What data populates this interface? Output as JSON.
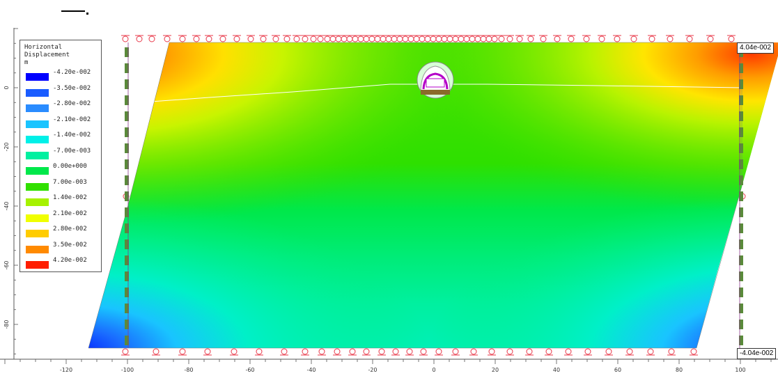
{
  "legend": {
    "title_line1": "Horizontal",
    "title_line2": "Displacement",
    "units": "m",
    "entries": [
      {
        "label": "-4.20e-002",
        "color": "#0000ff"
      },
      {
        "label": "-3.50e-002",
        "color": "#1a5cff"
      },
      {
        "label": "-2.80e-002",
        "color": "#2a8cff"
      },
      {
        "label": "-2.10e-002",
        "color": "#19c4ff"
      },
      {
        "label": "-1.40e-002",
        "color": "#00f0e8"
      },
      {
        "label": "-7.00e-003",
        "color": "#00f0a0"
      },
      {
        "label": "0.00e+000",
        "color": "#00e84a"
      },
      {
        "label": "7.00e-003",
        "color": "#31e000"
      },
      {
        "label": "1.40e-002",
        "color": "#a6f200"
      },
      {
        "label": "2.10e-002",
        "color": "#f0ff00"
      },
      {
        "label": "2.80e-002",
        "color": "#ffcc00"
      },
      {
        "label": "3.50e-002",
        "color": "#ff8a00"
      },
      {
        "label": "4.20e-002",
        "color": "#ff1e00"
      }
    ]
  },
  "flags": {
    "top_right": "4.04e-002",
    "bottom_right": "-4.04e-002"
  },
  "x_axis": {
    "ticks": [
      "-120",
      "-100",
      "-80",
      "-60",
      "-40",
      "-20",
      "0",
      "20",
      "40",
      "60",
      "80",
      "100"
    ]
  },
  "y_axis": {
    "ticks": [
      "0",
      "-20",
      "-40",
      "-60",
      "-80"
    ]
  },
  "colors": {
    "support": "#e8394a",
    "dashed_boundary": "#5a8a3a",
    "legend_border": "#555555"
  }
}
